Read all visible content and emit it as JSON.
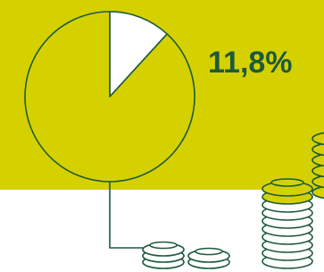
{
  "chart_data": {
    "type": "pie",
    "values": [
      11.8,
      88.2
    ],
    "value_labels": [
      "11,8%",
      null
    ],
    "colors": [
      "#ffffff",
      "#d5d100"
    ],
    "line_color": "#1d5a3c"
  }
}
